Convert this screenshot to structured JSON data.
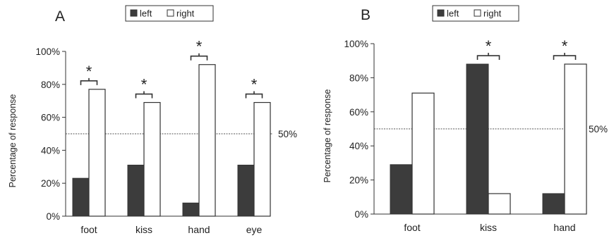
{
  "chart_data": [
    {
      "type": "bar",
      "panel_label": "A",
      "ylabel": "Percentage of response",
      "ylim": [
        0,
        100
      ],
      "yticks": [
        "0%",
        "20%",
        "40%",
        "60%",
        "80%",
        "100%"
      ],
      "categories": [
        "foot",
        "kiss",
        "hand",
        "eye"
      ],
      "series": [
        {
          "name": "left",
          "color": "#3c3c3c",
          "values": [
            23,
            31,
            8,
            31
          ]
        },
        {
          "name": "right",
          "color": "#ffffff",
          "values": [
            77,
            69,
            92,
            69
          ]
        }
      ],
      "reference_line": {
        "value": 50,
        "label": "50%"
      },
      "significance": [
        "*",
        "*",
        "*",
        "*"
      ],
      "legend": {
        "placement": "top",
        "entries": [
          "left",
          "right"
        ]
      },
      "grid": false
    },
    {
      "type": "bar",
      "panel_label": "B",
      "ylabel": "Percentage of response",
      "ylim": [
        0,
        100
      ],
      "yticks": [
        "0%",
        "20%",
        "40%",
        "60%",
        "80%",
        "100%"
      ],
      "categories": [
        "foot",
        "kiss",
        "hand"
      ],
      "series": [
        {
          "name": "left",
          "color": "#3c3c3c",
          "values": [
            29,
            88,
            12
          ]
        },
        {
          "name": "right",
          "color": "#ffffff",
          "values": [
            71,
            12,
            88
          ]
        }
      ],
      "reference_line": {
        "value": 50,
        "label": "50%"
      },
      "significance": [
        "",
        "*",
        "*"
      ],
      "legend": {
        "placement": "top",
        "entries": [
          "left",
          "right"
        ]
      },
      "grid": false
    }
  ]
}
